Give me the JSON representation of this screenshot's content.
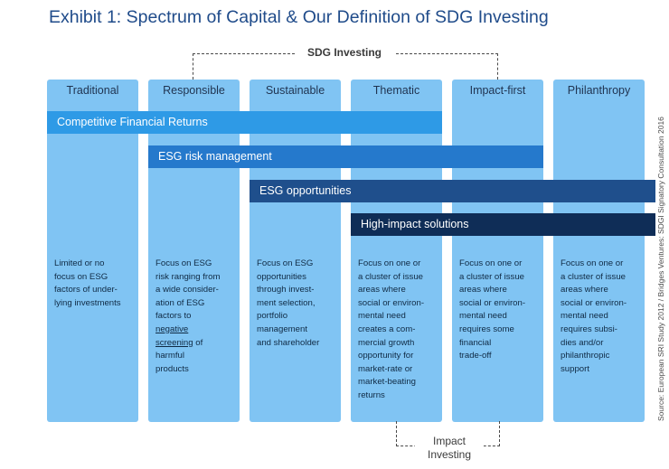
{
  "title": "Exhibit 1: Spectrum of Capital & Our Definition of SDG Investing",
  "sdg_label": "SDG Investing",
  "impact_label_line1": "Impact",
  "impact_label_line2": "Investing",
  "source": "Source: European SRI Study 2012 / Bridges Ventures: SDGI Signatory Consultation 2016",
  "columns": [
    {
      "label": "Traditional",
      "desc": [
        "Limited or no",
        "focus on ESG",
        "factors of under-",
        "lying investments"
      ]
    },
    {
      "label": "Responsible",
      "desc": [
        "Focus on ESG",
        "risk ranging from",
        "a wide consider-",
        "ation of ESG",
        "factors to"
      ],
      "desc_underlined": [
        "negative",
        "screening"
      ],
      "desc_after": " of",
      "desc_tail": [
        "harmful",
        "products"
      ]
    },
    {
      "label": "Sustainable",
      "desc": [
        "Focus on ESG",
        "opportunities",
        "through invest-",
        "ment selection,",
        "portfolio",
        "management",
        "and shareholder"
      ]
    },
    {
      "label": "Thematic",
      "desc": [
        "Focus on one or",
        "a cluster of issue",
        "areas where",
        "social or environ-",
        "mental need",
        "creates a com-",
        "mercial growth",
        "opportunity for",
        "market-rate or",
        "market-beating",
        "returns"
      ]
    },
    {
      "label": "Impact-first",
      "desc": [
        "Focus on one or",
        "a cluster of issue",
        "areas where",
        "social or environ-",
        "mental need",
        "requires some",
        "financial",
        "trade-off"
      ]
    },
    {
      "label": "Philanthropy",
      "desc": [
        "Focus on one or",
        "a cluster of issue",
        "areas where",
        "social or environ-",
        "mental need",
        "requires subsi-",
        "dies and/or",
        "philanthropic",
        "support"
      ]
    }
  ],
  "bands": [
    {
      "label": "Competitive Financial Returns",
      "color": "#2e9ae6"
    },
    {
      "label": "ESG risk management",
      "color": "#2579cc"
    },
    {
      "label": "ESG opportunities",
      "color": "#1f4f8c"
    },
    {
      "label": "High-impact solutions",
      "color": "#0f2d57"
    }
  ]
}
